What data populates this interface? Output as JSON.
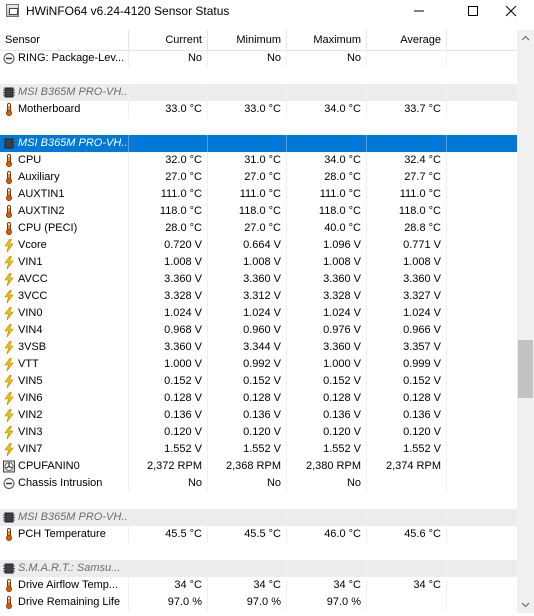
{
  "window": {
    "title": "HWiNFO64 v6.24-4120 Sensor Status"
  },
  "columns": [
    "Sensor",
    "Current",
    "Minimum",
    "Maximum",
    "Average"
  ],
  "rows": [
    {
      "kind": "item",
      "icon": "circle-minus-icon",
      "name": "RING: Package-Lev...",
      "cur": "No",
      "min": "No",
      "max": "No",
      "avg": ""
    },
    {
      "kind": "blank"
    },
    {
      "kind": "group",
      "icon": "chip-icon",
      "name": "MSI B365M PRO-VH..."
    },
    {
      "kind": "item",
      "icon": "thermometer-icon",
      "name": "Motherboard",
      "cur": "33.0 °C",
      "min": "33.0 °C",
      "max": "34.0 °C",
      "avg": "33.7 °C"
    },
    {
      "kind": "blank"
    },
    {
      "kind": "selected",
      "icon": "chip-icon",
      "name": "MSI B365M PRO-VH..."
    },
    {
      "kind": "item",
      "icon": "thermometer-icon",
      "name": "CPU",
      "cur": "32.0 °C",
      "min": "31.0 °C",
      "max": "34.0 °C",
      "avg": "32.4 °C"
    },
    {
      "kind": "item",
      "icon": "thermometer-icon",
      "name": "Auxiliary",
      "cur": "27.0 °C",
      "min": "27.0 °C",
      "max": "28.0 °C",
      "avg": "27.7 °C"
    },
    {
      "kind": "item",
      "icon": "thermometer-icon",
      "name": "AUXTIN1",
      "cur": "111.0 °C",
      "min": "111.0 °C",
      "max": "111.0 °C",
      "avg": "111.0 °C"
    },
    {
      "kind": "item",
      "icon": "thermometer-icon",
      "name": "AUXTIN2",
      "cur": "118.0 °C",
      "min": "118.0 °C",
      "max": "118.0 °C",
      "avg": "118.0 °C"
    },
    {
      "kind": "item",
      "icon": "thermometer-icon",
      "name": "CPU (PECI)",
      "cur": "28.0 °C",
      "min": "27.0 °C",
      "max": "40.0 °C",
      "avg": "28.8 °C"
    },
    {
      "kind": "item",
      "icon": "lightning-icon",
      "name": "Vcore",
      "cur": "0.720 V",
      "min": "0.664 V",
      "max": "1.096 V",
      "avg": "0.771 V"
    },
    {
      "kind": "item",
      "icon": "lightning-icon",
      "name": "VIN1",
      "cur": "1.008 V",
      "min": "1.008 V",
      "max": "1.008 V",
      "avg": "1.008 V"
    },
    {
      "kind": "item",
      "icon": "lightning-icon",
      "name": "AVCC",
      "cur": "3.360 V",
      "min": "3.360 V",
      "max": "3.360 V",
      "avg": "3.360 V"
    },
    {
      "kind": "item",
      "icon": "lightning-icon",
      "name": "3VCC",
      "cur": "3.328 V",
      "min": "3.312 V",
      "max": "3.328 V",
      "avg": "3.327 V"
    },
    {
      "kind": "item",
      "icon": "lightning-icon",
      "name": "VIN0",
      "cur": "1.024 V",
      "min": "1.024 V",
      "max": "1.024 V",
      "avg": "1.024 V"
    },
    {
      "kind": "item",
      "icon": "lightning-icon",
      "name": "VIN4",
      "cur": "0.968 V",
      "min": "0.960 V",
      "max": "0.976 V",
      "avg": "0.966 V"
    },
    {
      "kind": "item",
      "icon": "lightning-icon",
      "name": "3VSB",
      "cur": "3.360 V",
      "min": "3.344 V",
      "max": "3.360 V",
      "avg": "3.357 V"
    },
    {
      "kind": "item",
      "icon": "lightning-icon",
      "name": "VTT",
      "cur": "1.000 V",
      "min": "0.992 V",
      "max": "1.000 V",
      "avg": "0.999 V"
    },
    {
      "kind": "item",
      "icon": "lightning-icon",
      "name": "VIN5",
      "cur": "0.152 V",
      "min": "0.152 V",
      "max": "0.152 V",
      "avg": "0.152 V"
    },
    {
      "kind": "item",
      "icon": "lightning-icon",
      "name": "VIN6",
      "cur": "0.128 V",
      "min": "0.128 V",
      "max": "0.128 V",
      "avg": "0.128 V"
    },
    {
      "kind": "item",
      "icon": "lightning-icon",
      "name": "VIN2",
      "cur": "0.136 V",
      "min": "0.136 V",
      "max": "0.136 V",
      "avg": "0.136 V"
    },
    {
      "kind": "item",
      "icon": "lightning-icon",
      "name": "VIN3",
      "cur": "0.120 V",
      "min": "0.120 V",
      "max": "0.120 V",
      "avg": "0.120 V"
    },
    {
      "kind": "item",
      "icon": "lightning-icon",
      "name": "VIN7",
      "cur": "1.552 V",
      "min": "1.552 V",
      "max": "1.552 V",
      "avg": "1.552 V"
    },
    {
      "kind": "item",
      "icon": "fan-icon",
      "name": "CPUFANIN0",
      "cur": "2,372 RPM",
      "min": "2,368 RPM",
      "max": "2,380 RPM",
      "avg": "2,374 RPM"
    },
    {
      "kind": "item",
      "icon": "circle-minus-icon",
      "name": "Chassis Intrusion",
      "cur": "No",
      "min": "No",
      "max": "No",
      "avg": ""
    },
    {
      "kind": "blank"
    },
    {
      "kind": "group",
      "icon": "chip-icon",
      "name": "MSI B365M PRO-VH..."
    },
    {
      "kind": "item",
      "icon": "thermometer-icon",
      "name": "PCH Temperature",
      "cur": "45.5 °C",
      "min": "45.5 °C",
      "max": "46.0 °C",
      "avg": "45.6 °C"
    },
    {
      "kind": "blank"
    },
    {
      "kind": "group",
      "icon": "chip-icon",
      "name": "S.M.A.R.T.: Samsu..."
    },
    {
      "kind": "item",
      "icon": "thermometer-icon",
      "name": "Drive Airflow Temp...",
      "cur": "34 °C",
      "min": "34 °C",
      "max": "34 °C",
      "avg": "34 °C"
    },
    {
      "kind": "item",
      "icon": "thermometer-icon",
      "name": "Drive Remaining Life",
      "cur": "97.0 %",
      "min": "97.0 %",
      "max": "97.0 %",
      "avg": ""
    }
  ],
  "colors": {
    "selection": "#0078d7",
    "group_bg": "#ececec",
    "lightning": "#f5c400",
    "thermometer": "#e05a00"
  }
}
